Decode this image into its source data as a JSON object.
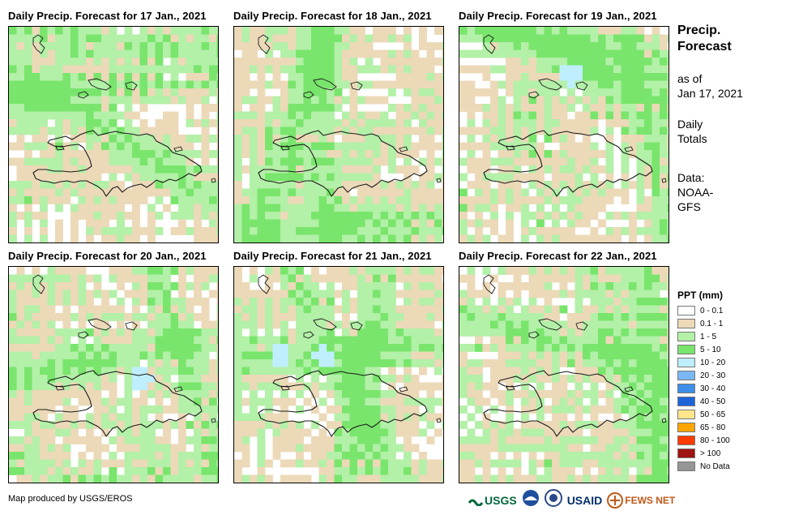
{
  "panels": [
    {
      "title": "Daily Precip. Forecast for 17 Jan., 2021",
      "greens": [
        [
          0,
          0.0,
          0.9,
          0.1
        ],
        [
          0.05,
          0.3,
          0.7,
          0.25
        ],
        [
          0.8,
          0.7,
          0.95,
          0.8
        ]
      ],
      "cyan": []
    },
    {
      "title": "Daily Precip. Forecast for 18 Jan., 2021",
      "greens": [
        [
          0.1,
          0.9,
          0.2,
          0.6
        ],
        [
          0.4,
          0.3,
          0.4,
          0.7
        ],
        [
          0.8,
          0.9,
          0.9,
          0.9
        ]
      ],
      "cyan": []
    },
    {
      "title": "Daily Precip. Forecast for 19 Jan., 2021",
      "greens": [
        [
          0.2,
          0.0,
          0.95,
          0.3
        ],
        [
          0.3,
          0.0,
          0.95,
          0.15
        ],
        [
          0.8,
          0.1,
          0.95,
          0.9
        ]
      ],
      "cyan": [
        [
          0.2,
          0.5
        ]
      ]
    },
    {
      "title": "Daily Precip. Forecast for 20 Jan., 2021",
      "greens": [
        [
          0.05,
          0.5,
          0.95,
          0.3
        ],
        [
          0.65,
          0.0,
          0.95,
          0.9
        ],
        [
          0.05,
          0.9,
          0.3,
          0.95
        ]
      ],
      "cyan": [
        [
          0.5,
          0.6
        ]
      ]
    },
    {
      "title": "Daily Precip. Forecast for 21 Jan., 2021",
      "greens": [
        [
          0.1,
          0.4,
          0.9,
          0.35
        ],
        [
          0.3,
          0.1,
          0.6,
          0.7
        ],
        [
          0.6,
          0.4,
          0.5,
          0.95
        ]
      ],
      "cyan": [
        [
          0.4,
          0.2
        ],
        [
          0.4,
          0.4
        ]
      ]
    },
    {
      "title": "Daily Precip. Forecast for 22 Jan., 2021",
      "greens": [
        [
          0.35,
          0.3,
          0.7,
          0.4
        ],
        [
          0.6,
          0.0,
          0.9,
          0.95
        ],
        [
          0.85,
          0.1,
          0.9,
          0.6
        ]
      ],
      "cyan": []
    }
  ],
  "side": {
    "heading_line1": "Precip.",
    "heading_line2": "Forecast",
    "asof_line1": "as of",
    "asof_line2": "Jan 17, 2021",
    "daily_line1": "Daily",
    "daily_line2": "Totals",
    "data_line1": "Data:",
    "data_line2": "NOAA-",
    "data_line3": "GFS"
  },
  "legend": {
    "title": "PPT (mm)",
    "items": [
      {
        "label": "0 - 0.1",
        "color": "#ffffff"
      },
      {
        "label": "0.1 - 1",
        "color": "#ecd9b8"
      },
      {
        "label": "1 - 5",
        "color": "#b3f0a8"
      },
      {
        "label": "5 - 10",
        "color": "#79e56c"
      },
      {
        "label": "10 - 20",
        "color": "#bfefff"
      },
      {
        "label": "20 - 30",
        "color": "#7ab8f4"
      },
      {
        "label": "30 - 40",
        "color": "#3c8ee8"
      },
      {
        "label": "40 - 50",
        "color": "#1e64d8"
      },
      {
        "label": "50 - 65",
        "color": "#ffe58c"
      },
      {
        "label": "65 - 80",
        "color": "#ffa500"
      },
      {
        "label": "80 - 100",
        "color": "#ff3c00"
      },
      {
        "label": "> 100",
        "color": "#a01414"
      },
      {
        "label": "No Data",
        "color": "#969696"
      }
    ]
  },
  "credit": "Map produced by USGS/EROS",
  "logos": {
    "usgs": "USGS",
    "usaid": "USAID",
    "fewsnet": "FEWS NET"
  }
}
